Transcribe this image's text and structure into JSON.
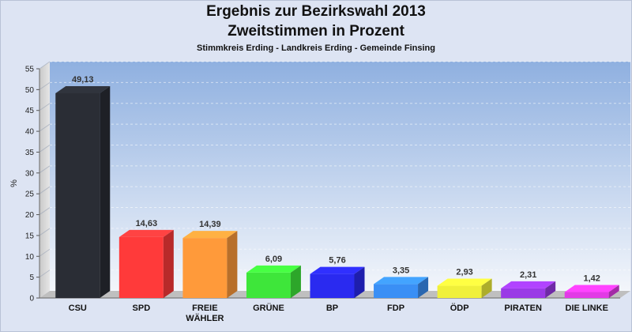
{
  "chart_data": {
    "type": "bar",
    "title": "Ergebnis zur Bezirkswahl 2013",
    "subtitle": "Zweitstimmen in Prozent",
    "caption": "Stimmkreis Erding - Landkreis Erding - Gemeinde Finsing",
    "ylabel": "%",
    "xlabel": "",
    "ylim": [
      0,
      55
    ],
    "yticks": [
      0,
      5,
      10,
      15,
      20,
      25,
      30,
      35,
      40,
      45,
      50,
      55
    ],
    "grid": true,
    "categories": [
      "CSU",
      "SPD",
      "FREIE WÄHLER",
      "GRÜNE",
      "BP",
      "FDP",
      "ÖDP",
      "PIRATEN",
      "DIE LINKE"
    ],
    "values": [
      49.13,
      14.63,
      14.39,
      6.09,
      5.76,
      3.35,
      2.93,
      2.31,
      1.42
    ],
    "value_labels": [
      "49,13",
      "14,63",
      "14,39",
      "6,09",
      "5,76",
      "3,35",
      "2,93",
      "2,31",
      "1,42"
    ],
    "colors": [
      "#2a2d35",
      "#ff3a3a",
      "#ff9a3a",
      "#3ee63a",
      "#2a2af0",
      "#3a8ff5",
      "#f0f03a",
      "#9a3ae6",
      "#e23ae6"
    ]
  }
}
